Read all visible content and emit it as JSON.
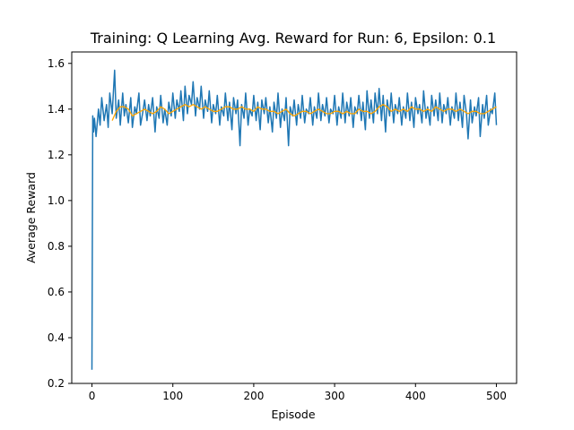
{
  "chart_data": {
    "type": "line",
    "title": "Training: Q Learning Avg. Reward for Run: 6, Epsilon: 0.1",
    "xlabel": "Episode",
    "ylabel": "Average Reward",
    "xlim": [
      -25,
      525
    ],
    "ylim": [
      0.2,
      1.65
    ],
    "grid": false,
    "legend": "none",
    "xticks": [
      0,
      100,
      200,
      300,
      400,
      500
    ],
    "xtick_labels": [
      "0",
      "100",
      "200",
      "300",
      "400",
      "500"
    ],
    "yticks": [
      0.2,
      0.4,
      0.6,
      0.8,
      1.0,
      1.2,
      1.4,
      1.6
    ],
    "ytick_labels": [
      "0.2",
      "0.4",
      "0.6",
      "0.8",
      "1.0",
      "1.2",
      "1.4",
      "1.6"
    ],
    "series": [
      {
        "color": "#1f77b4",
        "x": [
          0,
          1,
          2,
          3,
          5,
          8,
          10,
          12,
          15,
          18,
          20,
          22,
          25,
          28,
          30,
          33,
          35,
          38,
          40,
          42,
          45,
          48,
          50,
          53,
          55,
          58,
          60,
          63,
          65,
          68,
          70,
          72,
          75,
          78,
          80,
          83,
          85,
          88,
          90,
          93,
          95,
          98,
          100,
          103,
          105,
          108,
          110,
          113,
          115,
          118,
          120,
          123,
          125,
          128,
          130,
          133,
          135,
          138,
          140,
          143,
          145,
          148,
          150,
          153,
          155,
          158,
          160,
          163,
          165,
          168,
          170,
          173,
          175,
          178,
          180,
          183,
          185,
          188,
          190,
          193,
          195,
          198,
          200,
          203,
          205,
          208,
          210,
          213,
          215,
          218,
          220,
          223,
          225,
          228,
          230,
          233,
          235,
          238,
          240,
          243,
          245,
          248,
          250,
          253,
          255,
          258,
          260,
          263,
          265,
          268,
          270,
          273,
          275,
          278,
          280,
          283,
          285,
          288,
          290,
          293,
          295,
          298,
          300,
          303,
          305,
          308,
          310,
          313,
          315,
          318,
          320,
          323,
          325,
          328,
          330,
          333,
          335,
          338,
          340,
          343,
          345,
          348,
          350,
          353,
          355,
          358,
          360,
          363,
          365,
          368,
          370,
          373,
          375,
          378,
          380,
          383,
          385,
          388,
          390,
          393,
          395,
          398,
          400,
          403,
          405,
          408,
          410,
          413,
          415,
          418,
          420,
          423,
          425,
          428,
          430,
          433,
          435,
          438,
          440,
          443,
          445,
          448,
          450,
          453,
          455,
          458,
          460,
          463,
          465,
          468,
          470,
          473,
          475,
          478,
          480,
          483,
          485,
          488,
          490,
          493,
          495,
          498,
          500
        ],
        "values": [
          0.26,
          1.37,
          1.3,
          1.36,
          1.28,
          1.4,
          1.33,
          1.45,
          1.35,
          1.42,
          1.32,
          1.47,
          1.38,
          1.57,
          1.36,
          1.44,
          1.33,
          1.47,
          1.37,
          1.42,
          1.34,
          1.45,
          1.32,
          1.41,
          1.38,
          1.47,
          1.33,
          1.39,
          1.44,
          1.35,
          1.42,
          1.37,
          1.45,
          1.3,
          1.41,
          1.36,
          1.46,
          1.34,
          1.4,
          1.33,
          1.43,
          1.37,
          1.47,
          1.36,
          1.44,
          1.39,
          1.48,
          1.35,
          1.5,
          1.38,
          1.46,
          1.42,
          1.52,
          1.37,
          1.45,
          1.4,
          1.5,
          1.36,
          1.44,
          1.39,
          1.48,
          1.34,
          1.42,
          1.38,
          1.46,
          1.33,
          1.41,
          1.37,
          1.47,
          1.35,
          1.43,
          1.31,
          1.45,
          1.38,
          1.44,
          1.24,
          1.42,
          1.36,
          1.47,
          1.33,
          1.4,
          1.37,
          1.46,
          1.35,
          1.43,
          1.31,
          1.44,
          1.38,
          1.45,
          1.34,
          1.41,
          1.3,
          1.43,
          1.36,
          1.47,
          1.32,
          1.4,
          1.35,
          1.45,
          1.24,
          1.41,
          1.37,
          1.44,
          1.33,
          1.42,
          1.36,
          1.46,
          1.34,
          1.4,
          1.38,
          1.45,
          1.33,
          1.41,
          1.36,
          1.47,
          1.35,
          1.42,
          1.37,
          1.45,
          1.34,
          1.4,
          1.38,
          1.46,
          1.33,
          1.41,
          1.36,
          1.47,
          1.34,
          1.43,
          1.37,
          1.45,
          1.32,
          1.41,
          1.38,
          1.46,
          1.35,
          1.43,
          1.31,
          1.48,
          1.36,
          1.44,
          1.34,
          1.47,
          1.38,
          1.49,
          1.35,
          1.46,
          1.3,
          1.44,
          1.37,
          1.47,
          1.34,
          1.42,
          1.38,
          1.45,
          1.33,
          1.41,
          1.36,
          1.47,
          1.35,
          1.43,
          1.32,
          1.45,
          1.38,
          1.42,
          1.34,
          1.48,
          1.36,
          1.41,
          1.33,
          1.46,
          1.37,
          1.44,
          1.35,
          1.47,
          1.34,
          1.42,
          1.38,
          1.45,
          1.33,
          1.41,
          1.36,
          1.47,
          1.35,
          1.43,
          1.32,
          1.46,
          1.38,
          1.27,
          1.44,
          1.34,
          1.41,
          1.37,
          1.45,
          1.28,
          1.42,
          1.36,
          1.46,
          1.33,
          1.4,
          1.38,
          1.47,
          1.33
        ]
      },
      {
        "color": "#ffa500",
        "x": [
          25,
          30,
          35,
          40,
          45,
          50,
          55,
          60,
          65,
          70,
          75,
          80,
          85,
          90,
          95,
          100,
          105,
          110,
          115,
          120,
          125,
          130,
          135,
          140,
          145,
          150,
          155,
          160,
          165,
          170,
          175,
          180,
          185,
          190,
          195,
          200,
          205,
          210,
          215,
          220,
          225,
          230,
          235,
          240,
          245,
          250,
          255,
          260,
          265,
          270,
          275,
          280,
          285,
          290,
          295,
          300,
          305,
          310,
          315,
          320,
          325,
          330,
          335,
          340,
          345,
          350,
          355,
          360,
          365,
          370,
          375,
          380,
          385,
          390,
          395,
          400,
          405,
          410,
          415,
          420,
          425,
          430,
          435,
          440,
          445,
          450,
          455,
          460,
          465,
          470,
          475,
          480,
          485,
          490,
          495,
          500
        ],
        "values": [
          1.35,
          1.39,
          1.41,
          1.41,
          1.4,
          1.37,
          1.38,
          1.39,
          1.4,
          1.39,
          1.38,
          1.39,
          1.41,
          1.4,
          1.38,
          1.39,
          1.4,
          1.41,
          1.42,
          1.41,
          1.42,
          1.41,
          1.4,
          1.41,
          1.4,
          1.39,
          1.39,
          1.4,
          1.41,
          1.41,
          1.4,
          1.4,
          1.41,
          1.4,
          1.4,
          1.39,
          1.41,
          1.4,
          1.4,
          1.39,
          1.39,
          1.38,
          1.39,
          1.4,
          1.38,
          1.37,
          1.38,
          1.39,
          1.39,
          1.38,
          1.39,
          1.4,
          1.39,
          1.38,
          1.38,
          1.39,
          1.39,
          1.38,
          1.39,
          1.38,
          1.38,
          1.4,
          1.39,
          1.39,
          1.38,
          1.39,
          1.41,
          1.42,
          1.41,
          1.39,
          1.4,
          1.39,
          1.4,
          1.39,
          1.41,
          1.4,
          1.4,
          1.39,
          1.4,
          1.39,
          1.41,
          1.4,
          1.39,
          1.4,
          1.4,
          1.39,
          1.4,
          1.39,
          1.38,
          1.39,
          1.39,
          1.38,
          1.38,
          1.39,
          1.4,
          1.41
        ]
      }
    ]
  }
}
